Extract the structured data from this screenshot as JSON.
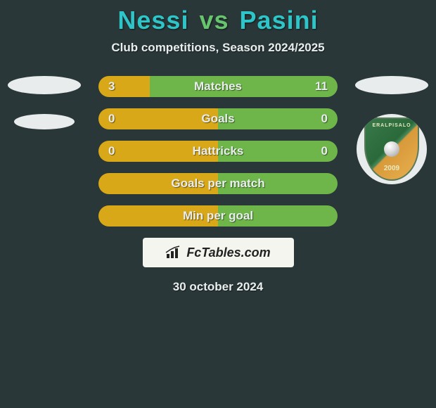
{
  "title": {
    "player1": "Nessi",
    "vs": "vs",
    "player2": "Pasini",
    "player1_color": "#2dc5c7",
    "vs_color": "#66c36e",
    "player2_color": "#2dc5c7",
    "fontsize": 36
  },
  "subtitle": "Club competitions, Season 2024/2025",
  "background_color": "#2a3738",
  "bars": {
    "left_color": "#d8a818",
    "right_color": "#6fb64a",
    "text_color": "#e8eded",
    "fontsize": 17,
    "height": 30,
    "border_radius": 15,
    "rows": [
      {
        "label": "Matches",
        "left": "3",
        "right": "11",
        "left_pct": 21.4,
        "right_pct": 78.6
      },
      {
        "label": "Goals",
        "left": "0",
        "right": "0",
        "left_pct": 50.0,
        "right_pct": 50.0
      },
      {
        "label": "Hattricks",
        "left": "0",
        "right": "0",
        "left_pct": 50.0,
        "right_pct": 50.0
      },
      {
        "label": "Goals per match",
        "left": "",
        "right": "",
        "left_pct": 50.0,
        "right_pct": 50.0
      },
      {
        "label": "Min per goal",
        "left": "",
        "right": "",
        "left_pct": 50.0,
        "right_pct": 50.0
      }
    ]
  },
  "crest": {
    "top_text": "ERALPISALO",
    "year": "2009",
    "shield_green": "#3a7a4a",
    "shield_gold": "#e8b050"
  },
  "watermark": {
    "text": "FcTables.com",
    "bg": "#f5f5f0",
    "fg": "#222"
  },
  "date": "30 october 2024"
}
